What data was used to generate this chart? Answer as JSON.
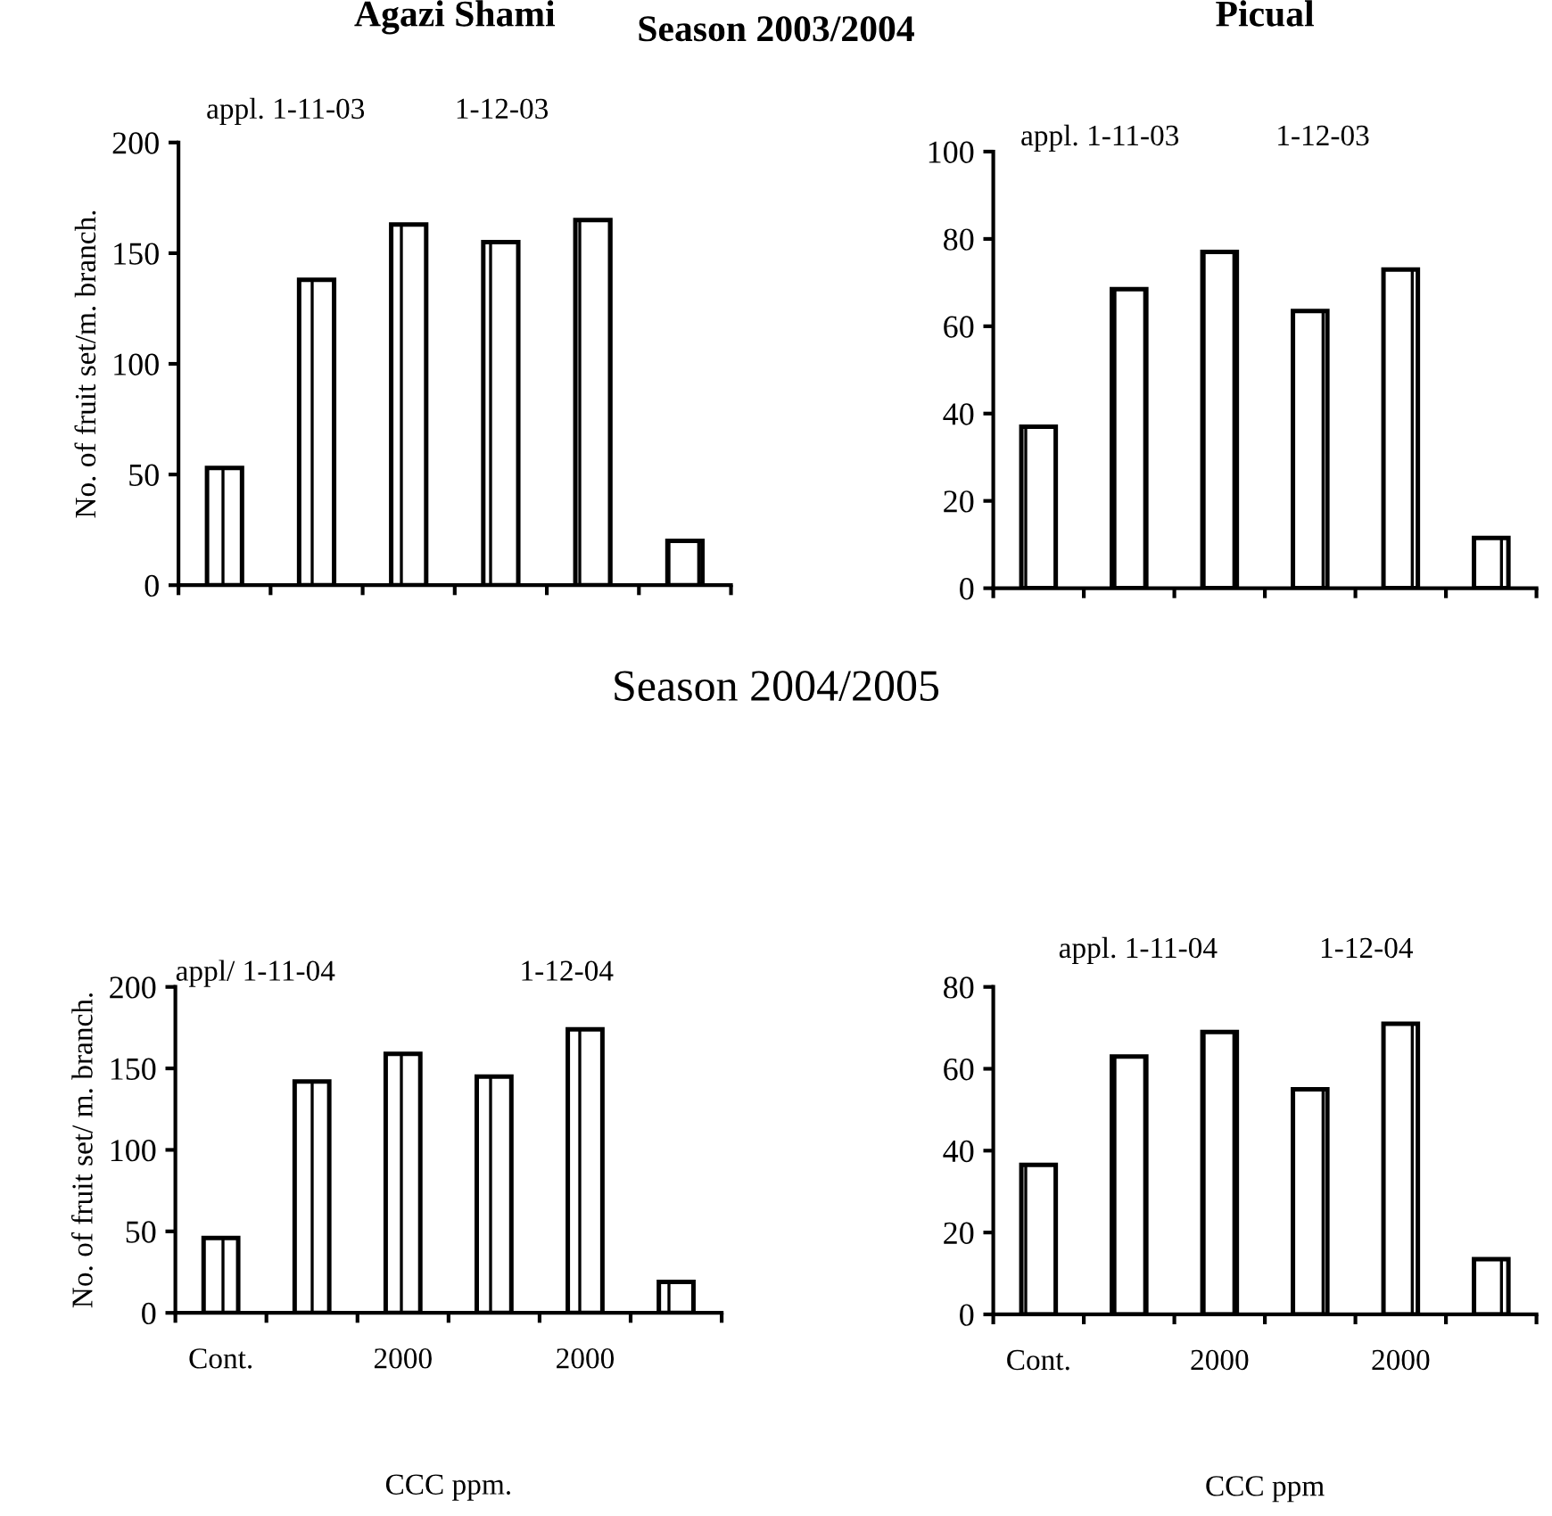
{
  "chart_data": [
    {
      "type": "bar",
      "title": "Agazi Shami",
      "subtitle": "Season 2003/2004",
      "ylabel": "No. of fruit set/m. branch.",
      "annotations": [
        "appl. 1-11-03",
        "1-12-03"
      ],
      "categories": [
        null,
        null,
        null,
        null,
        null,
        null
      ],
      "values": [
        53,
        138,
        163,
        155,
        165,
        20
      ],
      "color": "#000000",
      "ylim": [
        0,
        200
      ],
      "yticks": [
        0,
        50,
        100,
        150,
        200
      ],
      "grid": false,
      "legend": false
    },
    {
      "type": "bar",
      "title": "Picual",
      "annotations": [
        "appl. 1-11-03",
        "1-12-03"
      ],
      "categories": [
        null,
        null,
        null,
        null,
        null,
        null
      ],
      "values": [
        37,
        68.5,
        77,
        63.5,
        73,
        11.5
      ],
      "color": "#000000",
      "ylim": [
        0,
        100
      ],
      "yticks": [
        0,
        20,
        40,
        60,
        80,
        100
      ],
      "grid": false,
      "legend": false
    },
    {
      "type": "bar",
      "subtitle": "Season 2004/2005",
      "ylabel": "No. of fruit set/ m. branch.",
      "xlabel": "CCC ppm.",
      "annotations": [
        "appl/ 1-11-04",
        "1-12-04"
      ],
      "categories": [
        "Cont.",
        null,
        "2000",
        null,
        "2000",
        null
      ],
      "values": [
        46,
        142,
        159,
        145,
        174,
        19
      ],
      "color": "#000000",
      "ylim": [
        0,
        200
      ],
      "yticks": [
        0,
        50,
        100,
        150,
        200
      ],
      "grid": false,
      "legend": false
    },
    {
      "type": "bar",
      "xlabel": "CCC ppm",
      "annotations": [
        "appl. 1-11-04",
        "1-12-04"
      ],
      "categories": [
        "Cont.",
        null,
        "2000",
        null,
        "2000",
        null
      ],
      "values": [
        36.5,
        63,
        69,
        55,
        71,
        13.5
      ],
      "color": "#000000",
      "ylim": [
        0,
        80
      ],
      "yticks": [
        0,
        20,
        40,
        60,
        80
      ],
      "grid": false,
      "legend": false
    }
  ]
}
